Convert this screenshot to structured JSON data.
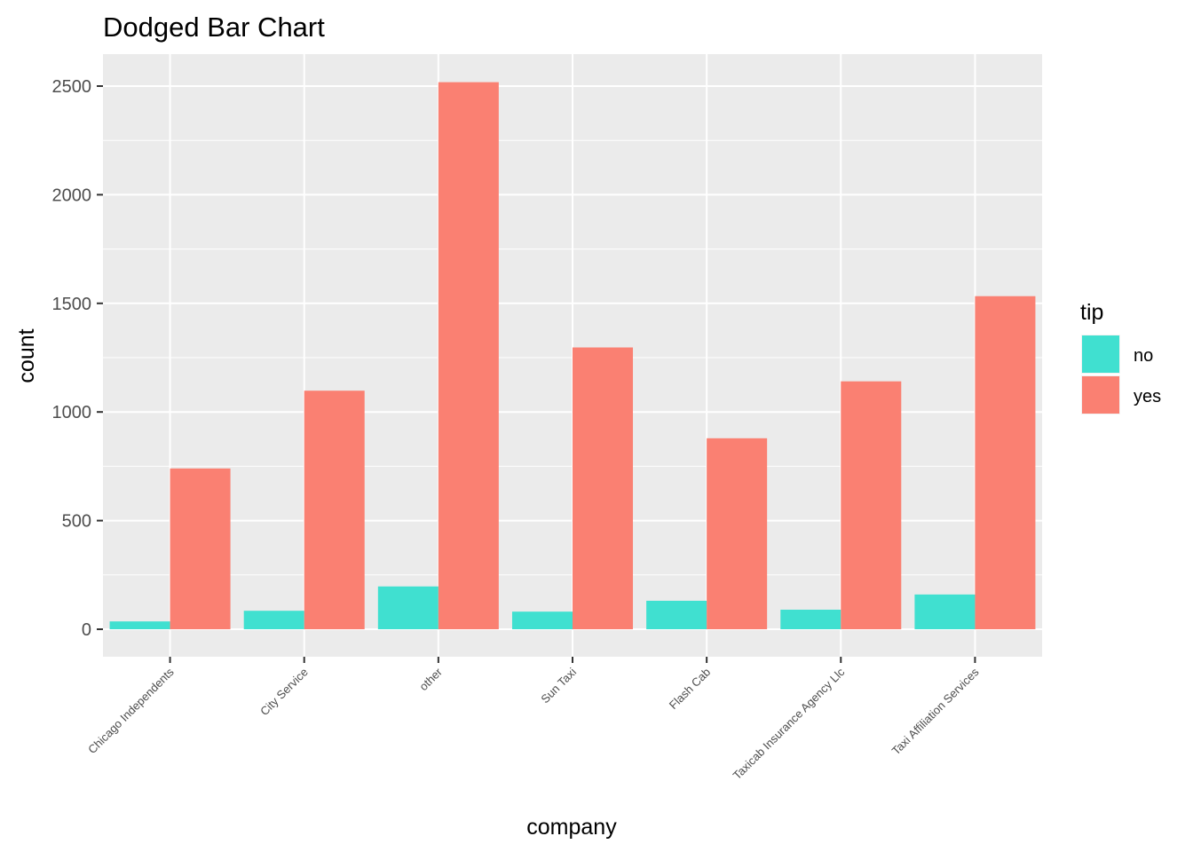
{
  "chart_data": {
    "type": "bar",
    "title": "Dodged Bar Chart",
    "xlabel": "company",
    "ylabel": "count",
    "categories": [
      "Chicago Independents",
      "City Service",
      "other",
      "Sun Taxi",
      "Flash Cab",
      "Taxicab Insurance Agency Llc",
      "Taxi Affiliation Services"
    ],
    "series": [
      {
        "name": "no",
        "color": "#40e0d0",
        "values": [
          36,
          85,
          197,
          81,
          131,
          90,
          160
        ]
      },
      {
        "name": "yes",
        "color": "#fa8072",
        "values": [
          740,
          1098,
          2518,
          1297,
          879,
          1141,
          1533
        ]
      }
    ],
    "ylim": [
      -130,
      2650
    ],
    "yticks": [
      0,
      500,
      1000,
      1500,
      2000,
      2500
    ],
    "ytick_labels": [
      "0",
      "500",
      "1000",
      "1500",
      "2000",
      "2500"
    ],
    "grid": true,
    "legend": {
      "title": "tip",
      "placement": "right"
    },
    "panel_background": "#ebebeb",
    "grid_color": "#ffffff"
  }
}
